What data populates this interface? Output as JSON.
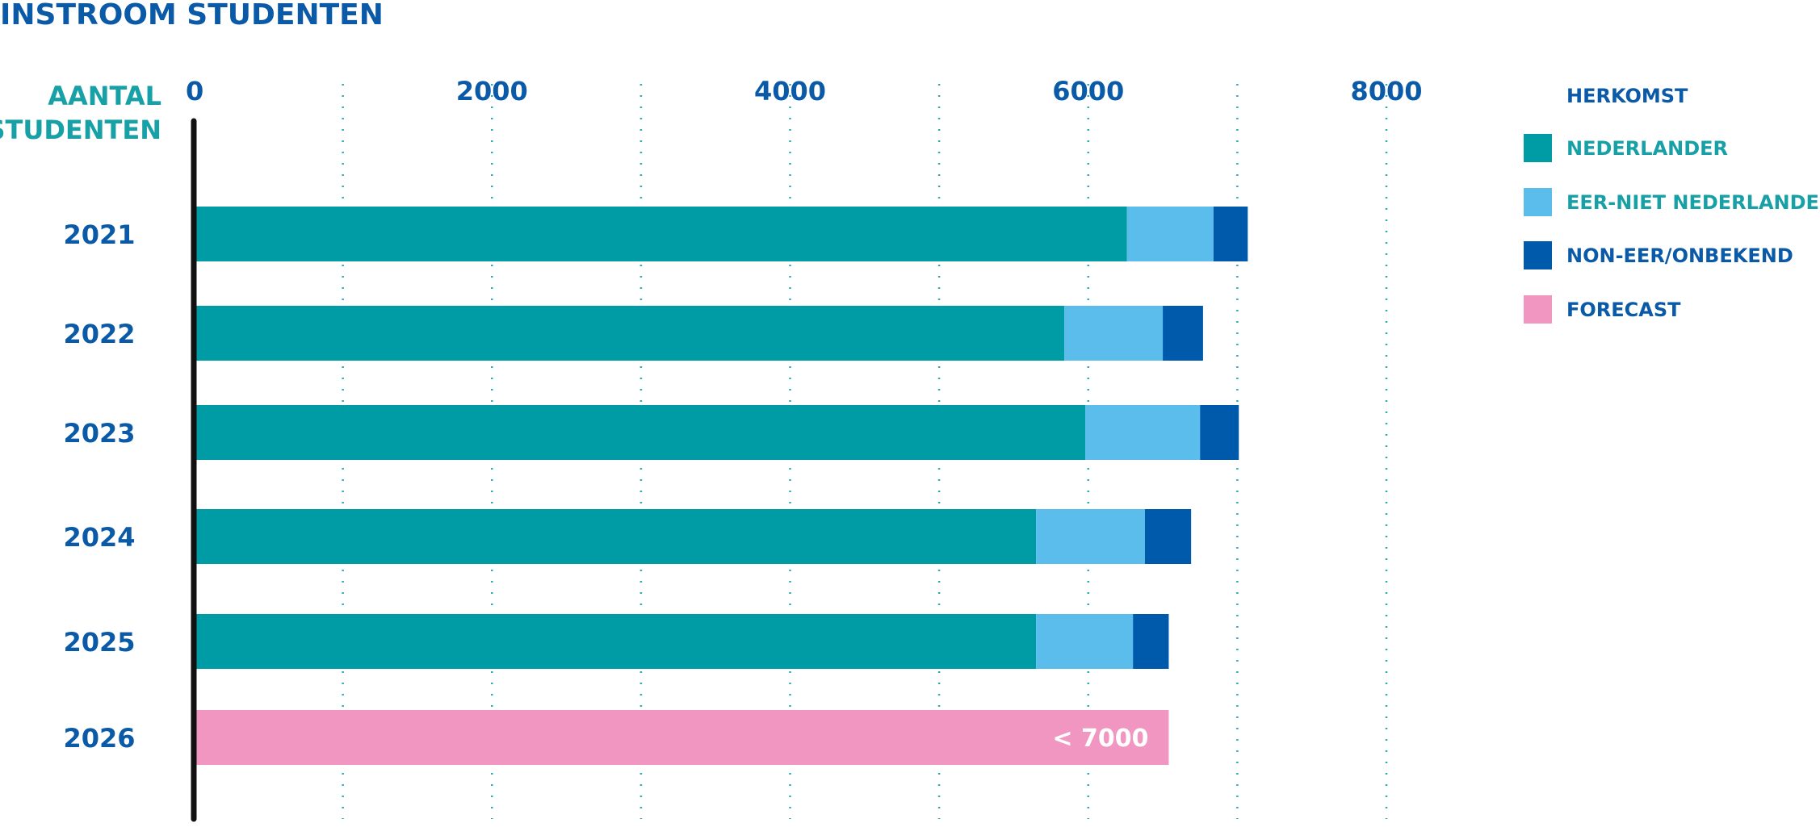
{
  "colors": {
    "nederlander": "#009ca6",
    "eer": "#5bbdec",
    "noneer": "#005aab",
    "forecast": "#f196c0",
    "title": "#0b5aa8",
    "accent_teal": "#17a0a6",
    "grid": "#35a9ae",
    "axis": "#111111"
  },
  "chart_data": {
    "type": "bar",
    "orientation": "horizontal",
    "stacked": true,
    "title": "INSTROOM STUDENTEN",
    "ylabel_lines": [
      "AANTAL",
      "STUDENTEN"
    ],
    "xlim": [
      0,
      8000
    ],
    "x_ticks": [
      0,
      2000,
      4000,
      6000,
      8000
    ],
    "x_tick_labels": [
      "0",
      "2000",
      "4000",
      "6000",
      "8000"
    ],
    "gridlines": [
      1000,
      2000,
      3000,
      4000,
      5000,
      6000,
      7000,
      8000
    ],
    "categories": [
      "2021",
      "2022",
      "2023",
      "2024",
      "2025",
      "2026"
    ],
    "series": [
      {
        "name": "NEDERLANDER",
        "color_key": "nederlander",
        "values": [
          6260,
          5840,
          5980,
          5650,
          5650,
          null
        ]
      },
      {
        "name": "EER-NIET NEDERLANDER",
        "color_key": "eer",
        "values": [
          580,
          660,
          770,
          730,
          650,
          null
        ]
      },
      {
        "name": "NON-EER/ONBEKEND",
        "color_key": "noneer",
        "values": [
          230,
          270,
          260,
          310,
          240,
          null
        ]
      },
      {
        "name": "FORECAST",
        "color_key": "forecast",
        "values": [
          null,
          null,
          null,
          null,
          null,
          6540
        ]
      }
    ],
    "data_labels": [
      {
        "category": "2026",
        "text": "< 7000"
      }
    ],
    "legend": {
      "title": "HERKOMST",
      "position": "top-right",
      "items": [
        "NEDERLANDER",
        "EER-NIET NEDERLANDER",
        "NON-EER/ONBEKEND",
        "FORECAST"
      ]
    }
  }
}
